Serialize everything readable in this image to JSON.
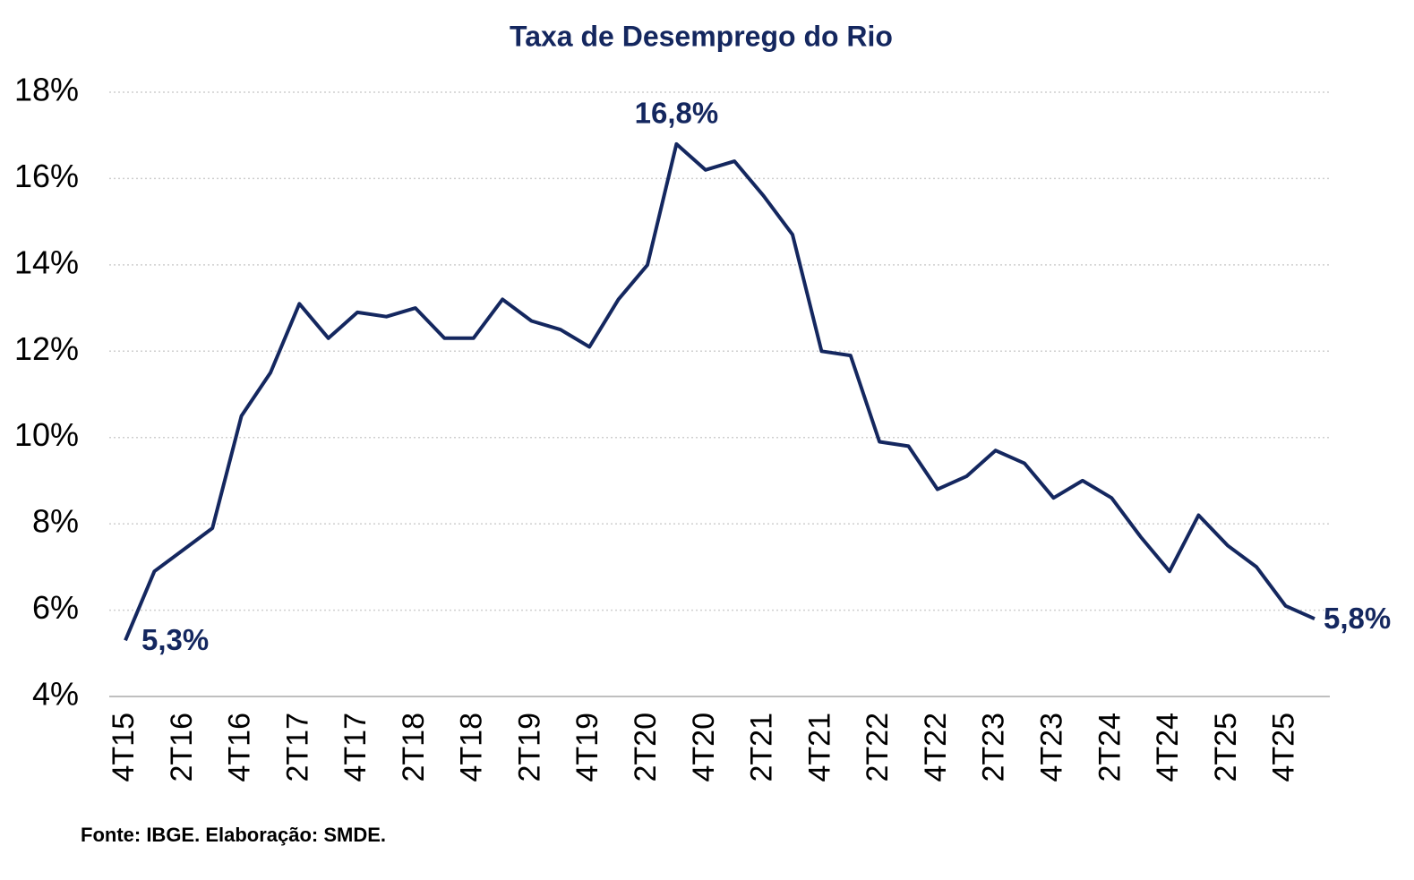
{
  "chart_data": {
    "type": "line",
    "title": "Taxa de Desemprego do Rio",
    "source": "Fonte: IBGE. Elaboração: SMDE.",
    "categories": [
      "4T15",
      null,
      "2T16",
      null,
      "4T16",
      null,
      "2T17",
      null,
      "4T17",
      null,
      "2T18",
      null,
      "4T18",
      null,
      "2T19",
      null,
      "4T19",
      null,
      "2T20",
      null,
      "4T20",
      null,
      "2T21",
      null,
      "4T21",
      null,
      "2T22",
      null,
      "4T22",
      null,
      "2T23",
      null,
      "4T23",
      null,
      "2T24",
      null,
      "4T24",
      null,
      "2T25",
      null,
      "4T25",
      null
    ],
    "series": [
      {
        "name": "Taxa de desemprego",
        "color": "#14275f",
        "values": [
          5.3,
          6.9,
          7.4,
          7.9,
          10.5,
          11.5,
          13.1,
          12.3,
          12.9,
          12.8,
          13.0,
          12.3,
          12.3,
          13.2,
          12.7,
          12.5,
          12.1,
          13.2,
          14.0,
          16.8,
          16.2,
          16.4,
          15.6,
          14.7,
          12.0,
          11.9,
          9.9,
          9.8,
          8.8,
          9.1,
          9.7,
          9.4,
          8.6,
          9.0,
          8.6,
          7.7,
          6.9,
          8.2,
          7.5,
          7.0,
          6.1,
          5.8
        ],
        "value_labels": [
          "5,3%",
          null,
          null,
          null,
          null,
          null,
          null,
          null,
          null,
          null,
          null,
          null,
          null,
          null,
          null,
          null,
          null,
          null,
          null,
          "16,8%",
          null,
          null,
          null,
          null,
          null,
          null,
          null,
          null,
          null,
          null,
          null,
          null,
          null,
          null,
          null,
          null,
          null,
          null,
          null,
          null,
          null,
          "5,8%"
        ]
      }
    ],
    "ylim": [
      4,
      18
    ],
    "yticks": [
      {
        "value": 4,
        "label": "4%"
      },
      {
        "value": 6,
        "label": "6%"
      },
      {
        "value": 8,
        "label": "8%"
      },
      {
        "value": 10,
        "label": "10%"
      },
      {
        "value": 12,
        "label": "12%"
      },
      {
        "value": 14,
        "label": "14%"
      },
      {
        "value": 16,
        "label": "16%"
      },
      {
        "value": 18,
        "label": "18%"
      }
    ],
    "grid": true
  }
}
